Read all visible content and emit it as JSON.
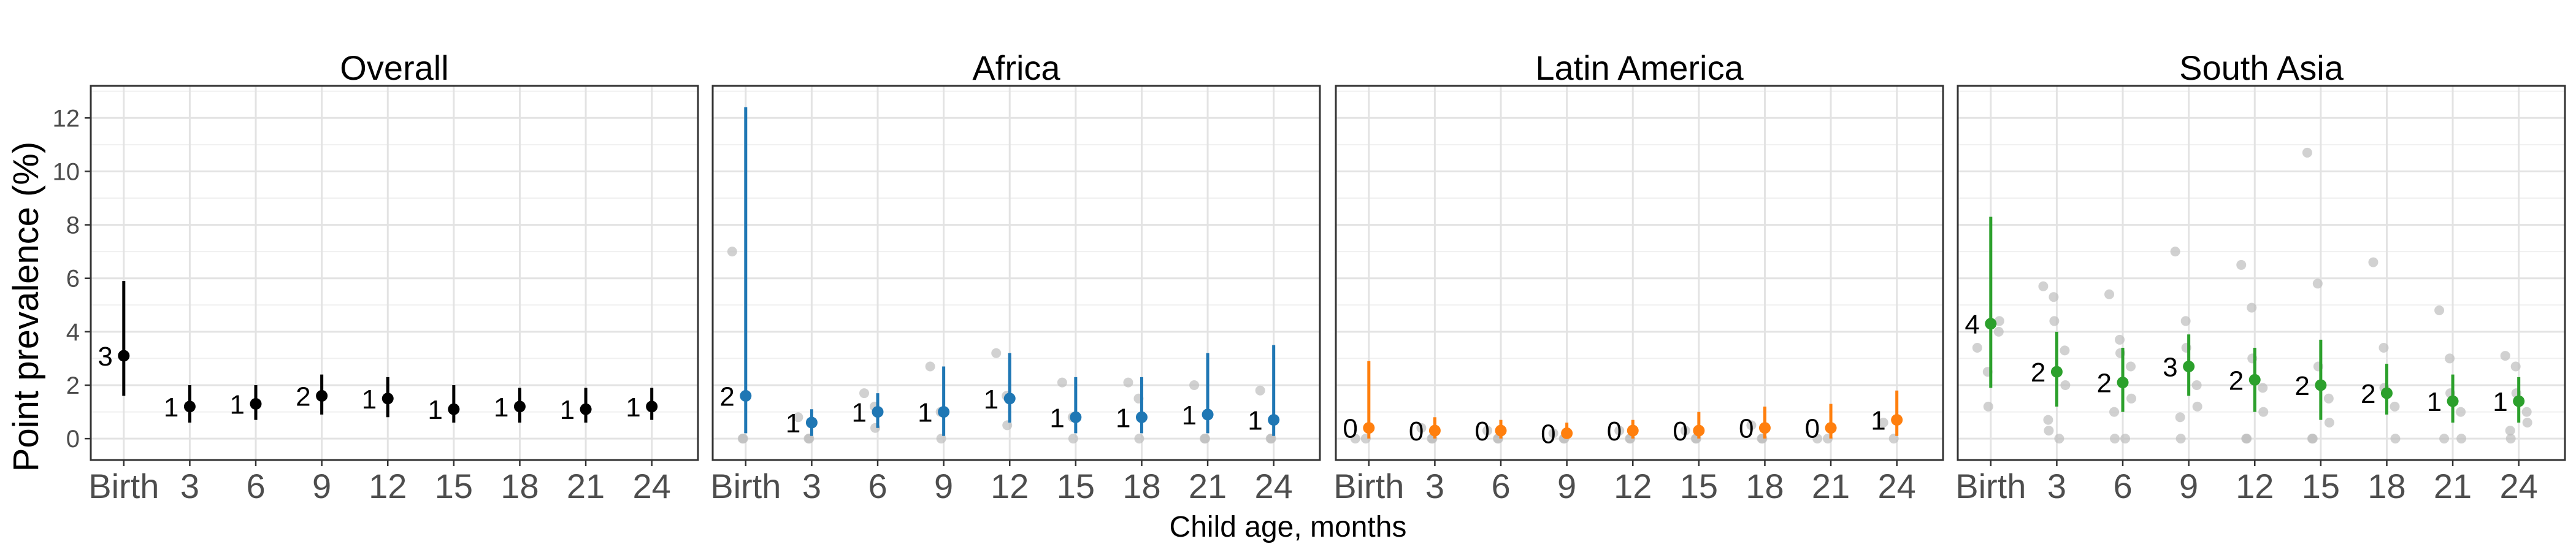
{
  "chart_data": {
    "type": "scatter",
    "title": "",
    "xlabel": "Child age, months",
    "ylabel": "Point prevalence (%)",
    "ylim": [
      -0.8,
      13.2
    ],
    "y_ticks": [
      0,
      2,
      4,
      6,
      8,
      10,
      12
    ],
    "categories": [
      "Birth",
      "3",
      "6",
      "9",
      "12",
      "15",
      "18",
      "21",
      "24"
    ],
    "grid": true,
    "legend": "none",
    "background_points_color": "#bdbdbd",
    "panels": [
      {
        "title": "Overall",
        "color": "#000000",
        "series": [
          {
            "x": "Birth",
            "estimate": 3.1,
            "lower": 1.6,
            "upper": 5.9,
            "n_label": "3"
          },
          {
            "x": "3",
            "estimate": 1.2,
            "lower": 0.6,
            "upper": 2.0,
            "n_label": "1"
          },
          {
            "x": "6",
            "estimate": 1.3,
            "lower": 0.7,
            "upper": 2.0,
            "n_label": "1"
          },
          {
            "x": "9",
            "estimate": 1.6,
            "lower": 0.9,
            "upper": 2.4,
            "n_label": "2"
          },
          {
            "x": "12",
            "estimate": 1.5,
            "lower": 0.8,
            "upper": 2.3,
            "n_label": "1"
          },
          {
            "x": "15",
            "estimate": 1.1,
            "lower": 0.6,
            "upper": 2.0,
            "n_label": "1"
          },
          {
            "x": "18",
            "estimate": 1.2,
            "lower": 0.6,
            "upper": 1.9,
            "n_label": "1"
          },
          {
            "x": "21",
            "estimate": 1.1,
            "lower": 0.6,
            "upper": 1.9,
            "n_label": "1"
          },
          {
            "x": "24",
            "estimate": 1.2,
            "lower": 0.7,
            "upper": 1.9,
            "n_label": "1"
          }
        ],
        "site_points": []
      },
      {
        "title": "Africa",
        "color": "#1f77b4",
        "series": [
          {
            "x": "Birth",
            "estimate": 1.6,
            "lower": 0.2,
            "upper": 12.4,
            "n_label": "2"
          },
          {
            "x": "3",
            "estimate": 0.6,
            "lower": 0.1,
            "upper": 1.1,
            "n_label": "1"
          },
          {
            "x": "6",
            "estimate": 1.0,
            "lower": 0.4,
            "upper": 1.7,
            "n_label": "1"
          },
          {
            "x": "9",
            "estimate": 1.0,
            "lower": 0.1,
            "upper": 2.7,
            "n_label": "1"
          },
          {
            "x": "12",
            "estimate": 1.5,
            "lower": 0.6,
            "upper": 3.2,
            "n_label": "1"
          },
          {
            "x": "15",
            "estimate": 0.8,
            "lower": 0.2,
            "upper": 2.3,
            "n_label": "1"
          },
          {
            "x": "18",
            "estimate": 0.8,
            "lower": 0.2,
            "upper": 2.3,
            "n_label": "1"
          },
          {
            "x": "21",
            "estimate": 0.9,
            "lower": 0.2,
            "upper": 3.2,
            "n_label": "1"
          },
          {
            "x": "24",
            "estimate": 0.7,
            "lower": 0.1,
            "upper": 3.5,
            "n_label": "1"
          }
        ],
        "site_points": [
          {
            "x": "Birth",
            "values": [
              7.0,
              0.0,
              0.0
            ]
          },
          {
            "x": "3",
            "values": [
              0.8,
              0.0,
              0.0
            ]
          },
          {
            "x": "6",
            "values": [
              1.7,
              1.2,
              0.4
            ]
          },
          {
            "x": "9",
            "values": [
              2.7,
              1.0,
              0.0
            ]
          },
          {
            "x": "12",
            "values": [
              3.2,
              1.6,
              0.5
            ]
          },
          {
            "x": "15",
            "values": [
              2.1,
              0.8,
              0.0
            ]
          },
          {
            "x": "18",
            "values": [
              2.1,
              1.5,
              0.0
            ]
          },
          {
            "x": "21",
            "values": [
              2.0,
              0.0,
              0.0
            ]
          },
          {
            "x": "24",
            "values": [
              1.8,
              0.0,
              0.0
            ]
          }
        ]
      },
      {
        "title": "Latin America",
        "color": "#ff7f0e",
        "series": [
          {
            "x": "Birth",
            "estimate": 0.4,
            "lower": 0.0,
            "upper": 2.9,
            "n_label": "0"
          },
          {
            "x": "3",
            "estimate": 0.3,
            "lower": 0.0,
            "upper": 0.8,
            "n_label": "0"
          },
          {
            "x": "6",
            "estimate": 0.3,
            "lower": 0.0,
            "upper": 0.7,
            "n_label": "0"
          },
          {
            "x": "9",
            "estimate": 0.2,
            "lower": 0.0,
            "upper": 0.6,
            "n_label": "0"
          },
          {
            "x": "12",
            "estimate": 0.3,
            "lower": 0.0,
            "upper": 0.7,
            "n_label": "0"
          },
          {
            "x": "15",
            "estimate": 0.3,
            "lower": 0.0,
            "upper": 1.0,
            "n_label": "0"
          },
          {
            "x": "18",
            "estimate": 0.4,
            "lower": 0.0,
            "upper": 1.2,
            "n_label": "0"
          },
          {
            "x": "21",
            "estimate": 0.4,
            "lower": 0.0,
            "upper": 1.3,
            "n_label": "0"
          },
          {
            "x": "24",
            "estimate": 0.7,
            "lower": 0.1,
            "upper": 1.8,
            "n_label": "1"
          }
        ],
        "site_points": [
          {
            "x": "Birth",
            "values": [
              0.0,
              0.0
            ]
          },
          {
            "x": "3",
            "values": [
              0.4,
              0.0,
              0.0
            ]
          },
          {
            "x": "6",
            "values": [
              0.3,
              0.0,
              0.0
            ]
          },
          {
            "x": "9",
            "values": [
              0.2,
              0.0,
              0.0
            ]
          },
          {
            "x": "12",
            "values": [
              0.3,
              0.0,
              0.0
            ]
          },
          {
            "x": "15",
            "values": [
              0.3,
              0.0,
              0.0
            ]
          },
          {
            "x": "18",
            "values": [
              0.5,
              0.0,
              0.0
            ]
          },
          {
            "x": "21",
            "values": [
              0.0,
              0.0
            ]
          },
          {
            "x": "24",
            "values": [
              0.6,
              0.0
            ]
          }
        ]
      },
      {
        "title": "South Asia",
        "color": "#2ca02c",
        "series": [
          {
            "x": "Birth",
            "estimate": 4.3,
            "lower": 1.9,
            "upper": 8.3,
            "n_label": "4"
          },
          {
            "x": "3",
            "estimate": 2.5,
            "lower": 1.2,
            "upper": 4.0,
            "n_label": "2"
          },
          {
            "x": "6",
            "estimate": 2.1,
            "lower": 1.0,
            "upper": 3.4,
            "n_label": "2"
          },
          {
            "x": "9",
            "estimate": 2.7,
            "lower": 1.6,
            "upper": 3.9,
            "n_label": "3"
          },
          {
            "x": "12",
            "estimate": 2.2,
            "lower": 1.0,
            "upper": 3.4,
            "n_label": "2"
          },
          {
            "x": "15",
            "estimate": 2.0,
            "lower": 0.7,
            "upper": 3.7,
            "n_label": "2"
          },
          {
            "x": "18",
            "estimate": 1.7,
            "lower": 0.9,
            "upper": 2.8,
            "n_label": "2"
          },
          {
            "x": "21",
            "estimate": 1.4,
            "lower": 0.6,
            "upper": 2.4,
            "n_label": "1"
          },
          {
            "x": "24",
            "estimate": 1.4,
            "lower": 0.6,
            "upper": 2.3,
            "n_label": "1"
          }
        ],
        "site_points": [
          {
            "x": "Birth",
            "values": [
              3.4,
              2.5,
              1.2,
              4.0,
              4.4
            ]
          },
          {
            "x": "3",
            "values": [
              5.7,
              5.3,
              4.4,
              3.3,
              2.0,
              0.7,
              0.3,
              0.0
            ]
          },
          {
            "x": "6",
            "values": [
              5.4,
              3.7,
              3.2,
              2.7,
              1.5,
              1.0,
              0.0,
              0.0
            ]
          },
          {
            "x": "9",
            "values": [
              7.0,
              4.4,
              3.4,
              2.0,
              1.2,
              0.8,
              0.0
            ]
          },
          {
            "x": "12",
            "values": [
              6.5,
              4.9,
              3.0,
              1.9,
              1.0,
              0.0,
              0.0
            ]
          },
          {
            "x": "15",
            "values": [
              10.7,
              5.8,
              2.7,
              1.5,
              0.6,
              0.0,
              0.0
            ]
          },
          {
            "x": "18",
            "values": [
              6.6,
              3.4,
              1.9,
              1.2,
              0.0
            ]
          },
          {
            "x": "21",
            "values": [
              4.8,
              3.0,
              1.7,
              1.0,
              0.0,
              0.0
            ]
          },
          {
            "x": "24",
            "values": [
              3.1,
              2.7,
              1.7,
              1.0,
              0.6,
              0.3,
              0.0
            ]
          }
        ]
      }
    ]
  }
}
